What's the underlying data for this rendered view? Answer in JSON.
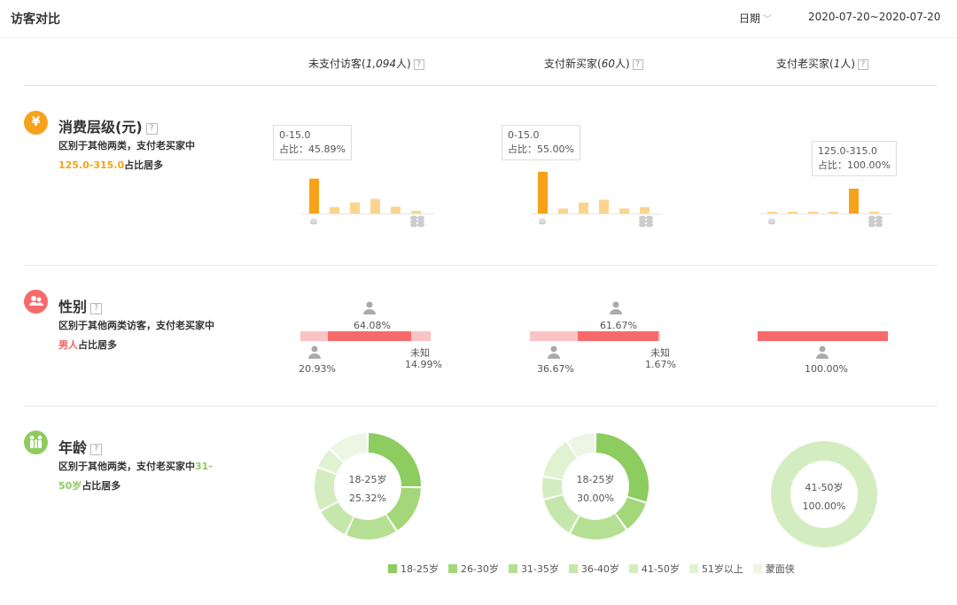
{
  "header": {
    "title": "访客对比",
    "date_label": "日期",
    "date_range": "2020-07-20~2020-07-20"
  },
  "columns": [
    {
      "label_prefix": "未支付访客(",
      "label_italic": "1,094",
      "label_suffix": "人)"
    },
    {
      "label_prefix": "支付新买家(",
      "label_italic": "60",
      "label_suffix": "人)"
    },
    {
      "label_prefix": "支付老买家(",
      "label_italic": "1",
      "label_suffix": "人)"
    }
  ],
  "colors": {
    "orange": "#f7a21a",
    "orange_light": "#fbd590",
    "red": "#f86a6a",
    "red_light": "#fbc4c4",
    "green": "#8dcc5f"
  },
  "sections": {
    "spending": {
      "title": "消费层级(元)",
      "icon": "yen-icon",
      "icon_glyph": "¥",
      "desc_line1": "区别于其他两类，支付老买家中",
      "desc_highlight": "125.0-315.0",
      "desc_tail": "占比居多"
    },
    "gender": {
      "title": "性别",
      "icon": "people-icon",
      "desc_line1": "区别于其他两类访客，支付老买家中",
      "desc_highlight": "男人",
      "desc_tail": "占比居多"
    },
    "age": {
      "title": "年龄",
      "icon": "family-icon",
      "desc_line1": "区别于其他两类，支付老买家中",
      "desc_highlight_a": "31-",
      "desc_highlight_b": "50岁",
      "desc_tail": "占比居多"
    }
  },
  "spending_charts": [
    {
      "tooltip_range": "0-15.0",
      "tooltip_share": "占比：45.89%",
      "values": [
        45.89,
        8.5,
        14.5,
        19.0,
        9.0,
        3.5
      ],
      "highlight": 0
    },
    {
      "tooltip_range": "0-15.0",
      "tooltip_share": "占比：55.00%",
      "values": [
        55.0,
        6.5,
        14.5,
        18.0,
        6.5,
        8.5
      ],
      "highlight": 0
    },
    {
      "tooltip_range": "125.0-315.0",
      "tooltip_share": "占比：100.00%",
      "values": [
        1.5,
        1.5,
        1.5,
        1.5,
        100.0,
        1.5
      ],
      "highlight": 4
    }
  ],
  "gender_charts": [
    {
      "female": "20.93%",
      "male": "64.08%",
      "unknown": "14.99%",
      "unknown_label": "未知",
      "female_v": 20.93,
      "male_v": 64.08,
      "unknown_v": 14.99
    },
    {
      "female": "36.67%",
      "male": "61.67%",
      "unknown": "1.67%",
      "unknown_label": "未知",
      "female_v": 36.67,
      "male_v": 61.67,
      "unknown_v": 1.67
    },
    {
      "male": "100.00%",
      "male_v": 100.0
    }
  ],
  "age_charts": [
    {
      "center_label": "18-25岁",
      "center_value": "25.32%",
      "values": [
        25.32,
        15.5,
        16.0,
        10.5,
        13.5,
        6.5,
        12.68
      ]
    },
    {
      "center_label": "18-25岁",
      "center_value": "30.00%",
      "values": [
        30.0,
        10.0,
        18.0,
        13.0,
        7.0,
        13.0,
        9.0
      ]
    },
    {
      "center_label": "41-50岁",
      "center_value": "100.00%",
      "values": [
        0,
        0,
        0,
        0,
        100.0,
        0,
        0
      ]
    }
  ],
  "age_legend": [
    {
      "label": "18-25岁",
      "color": "#8dcc5f"
    },
    {
      "label": "26-30岁",
      "color": "#a3d77a"
    },
    {
      "label": "31-35岁",
      "color": "#b5df93"
    },
    {
      "label": "36-40岁",
      "color": "#c6e7ab"
    },
    {
      "label": "41-50岁",
      "color": "#d4edc0"
    },
    {
      "label": "51岁以上",
      "color": "#e1f2d3"
    },
    {
      "label": "蒙面侠",
      "color": "#edf6e4"
    }
  ]
}
